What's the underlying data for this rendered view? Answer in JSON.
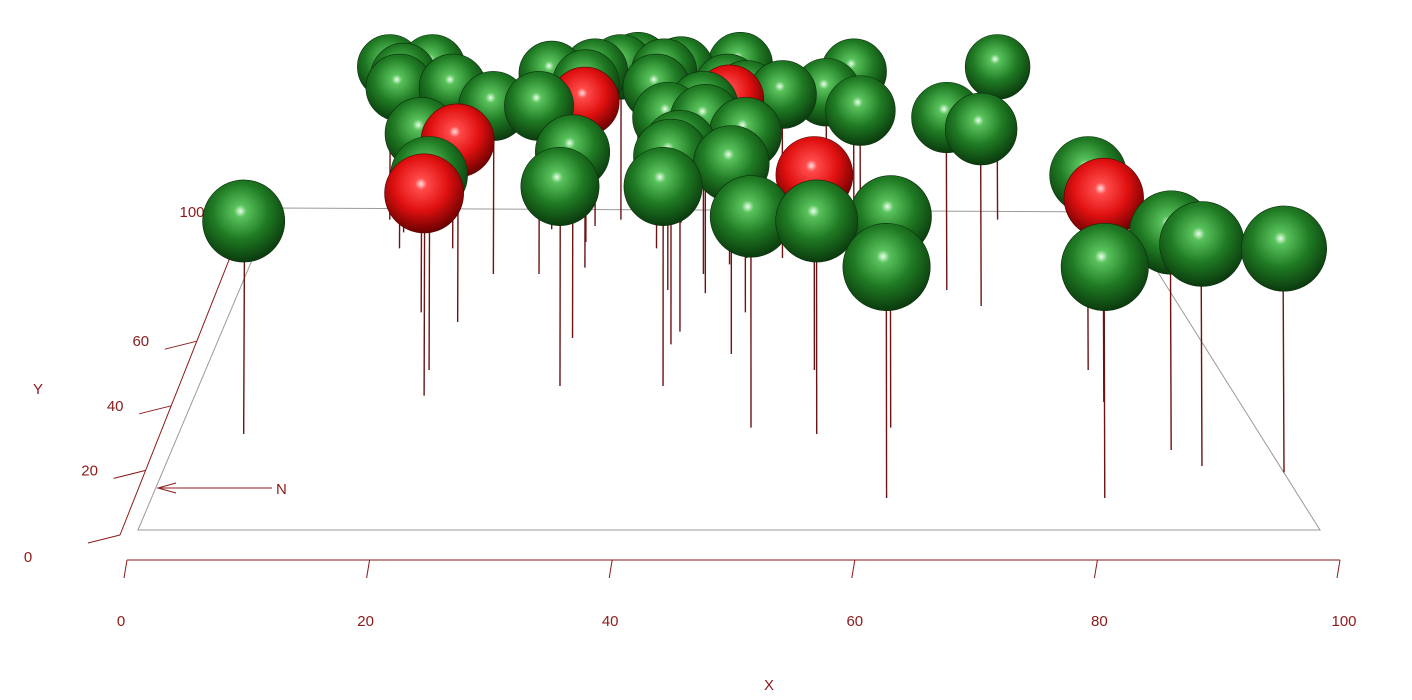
{
  "chart_data": {
    "type": "scatter",
    "subtype": "3d-lollipop-spheres",
    "title": "",
    "xlabel": "X",
    "ylabel": "Y",
    "north_label": "N",
    "xlim": [
      0,
      100
    ],
    "ylim": [
      0,
      100
    ],
    "x_ticks": [
      0,
      20,
      40,
      60,
      80,
      100
    ],
    "y_ticks": [
      0,
      20,
      40,
      60,
      100
    ],
    "colors": {
      "axis": "#8b1a1a",
      "plane": "#9a9a9a",
      "stem": "#6b1414",
      "class_green": "#1e7a22",
      "class_red": "#e01414"
    },
    "points": [
      {
        "x": 6,
        "y": 30,
        "class": "green"
      },
      {
        "x": 14,
        "y": 97,
        "class": "green"
      },
      {
        "x": 16,
        "y": 93,
        "class": "green"
      },
      {
        "x": 19,
        "y": 97,
        "class": "green"
      },
      {
        "x": 16,
        "y": 88,
        "class": "green"
      },
      {
        "x": 22,
        "y": 88,
        "class": "green"
      },
      {
        "x": 20,
        "y": 68,
        "class": "green"
      },
      {
        "x": 24,
        "y": 65,
        "class": "red"
      },
      {
        "x": 22,
        "y": 50,
        "class": "green"
      },
      {
        "x": 22,
        "y": 42,
        "class": "red"
      },
      {
        "x": 27,
        "y": 80,
        "class": "green"
      },
      {
        "x": 32,
        "y": 80,
        "class": "green"
      },
      {
        "x": 33,
        "y": 94,
        "class": "green"
      },
      {
        "x": 37,
        "y": 90,
        "class": "green"
      },
      {
        "x": 38,
        "y": 95,
        "class": "green"
      },
      {
        "x": 37,
        "y": 82,
        "class": "red"
      },
      {
        "x": 36,
        "y": 60,
        "class": "green"
      },
      {
        "x": 35,
        "y": 45,
        "class": "green"
      },
      {
        "x": 41,
        "y": 97,
        "class": "green"
      },
      {
        "x": 43,
        "y": 98,
        "class": "green"
      },
      {
        "x": 46,
        "y": 95,
        "class": "green"
      },
      {
        "x": 48,
        "y": 96,
        "class": "green"
      },
      {
        "x": 45,
        "y": 88,
        "class": "green"
      },
      {
        "x": 46,
        "y": 75,
        "class": "green"
      },
      {
        "x": 50,
        "y": 80,
        "class": "green"
      },
      {
        "x": 47,
        "y": 62,
        "class": "green"
      },
      {
        "x": 46,
        "y": 58,
        "class": "green"
      },
      {
        "x": 45,
        "y": 45,
        "class": "green"
      },
      {
        "x": 50,
        "y": 74,
        "class": "green"
      },
      {
        "x": 53,
        "y": 88,
        "class": "green"
      },
      {
        "x": 55,
        "y": 85,
        "class": "green"
      },
      {
        "x": 53,
        "y": 83,
        "class": "red"
      },
      {
        "x": 54,
        "y": 68,
        "class": "green"
      },
      {
        "x": 52,
        "y": 55,
        "class": "green"
      },
      {
        "x": 53,
        "y": 32,
        "class": "green"
      },
      {
        "x": 55,
        "y": 98,
        "class": "green"
      },
      {
        "x": 59,
        "y": 85,
        "class": "green"
      },
      {
        "x": 60,
        "y": 50,
        "class": "red"
      },
      {
        "x": 59,
        "y": 30,
        "class": "green"
      },
      {
        "x": 64,
        "y": 86,
        "class": "green"
      },
      {
        "x": 68,
        "y": 95,
        "class": "green"
      },
      {
        "x": 67,
        "y": 78,
        "class": "green"
      },
      {
        "x": 66,
        "y": 32,
        "class": "green"
      },
      {
        "x": 64,
        "y": 10,
        "class": "green"
      },
      {
        "x": 76,
        "y": 75,
        "class": "green"
      },
      {
        "x": 79,
        "y": 70,
        "class": "green"
      },
      {
        "x": 85,
        "y": 97,
        "class": "green"
      },
      {
        "x": 87,
        "y": 50,
        "class": "green"
      },
      {
        "x": 87,
        "y": 40,
        "class": "red"
      },
      {
        "x": 83,
        "y": 10,
        "class": "green"
      },
      {
        "x": 91,
        "y": 25,
        "class": "green"
      },
      {
        "x": 93,
        "y": 20,
        "class": "green"
      },
      {
        "x": 100,
        "y": 18,
        "class": "green"
      }
    ]
  }
}
